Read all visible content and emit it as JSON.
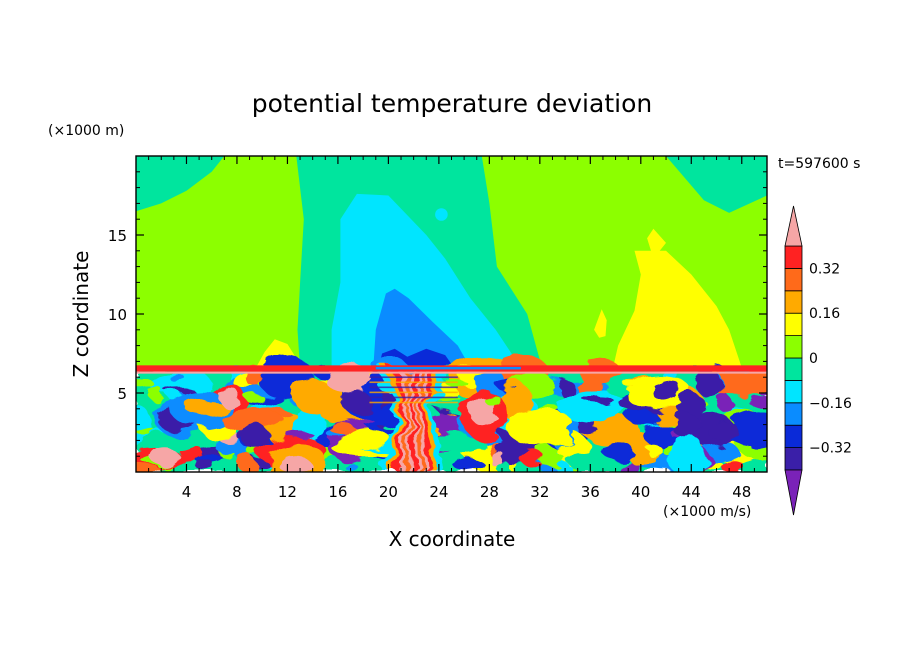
{
  "chart_data": {
    "type": "heatmap",
    "title": "potential temperature deviation",
    "time_label": "t=597600 s",
    "xlabel": "X coordinate",
    "ylabel": "Z coordinate",
    "x_unit": "(×1000 m/s)",
    "y_unit": "(×1000 m)",
    "xlim": [
      0,
      50
    ],
    "ylim": [
      0,
      20
    ],
    "x_ticks": [
      4,
      8,
      12,
      16,
      20,
      24,
      28,
      32,
      36,
      40,
      44,
      48
    ],
    "y_ticks": [
      5,
      10,
      15
    ],
    "colorbar": {
      "levels": [
        -0.4,
        -0.32,
        -0.24,
        -0.16,
        -0.08,
        0,
        0.08,
        0.16,
        0.24,
        0.32,
        0.4
      ],
      "labels": [
        "0.32",
        "0.16",
        "0",
        "−0.16",
        "−0.32"
      ],
      "label_values": [
        0.32,
        0.16,
        0,
        -0.16,
        -0.32
      ],
      "colors": [
        "#7a22b8",
        "#3a1fa8",
        "#0a2ad8",
        "#0a8cff",
        "#00e5ff",
        "#00e59e",
        "#8cff00",
        "#ffff00",
        "#ffaa00",
        "#ff6a1a",
        "#ff2222",
        "#f6a6a6"
      ]
    },
    "features": {
      "upper_layer": [
        {
          "kind": "negative",
          "level": -0.24,
          "x": [
            17.5,
            26.5
          ],
          "z": [
            6.6,
            11.5
          ]
        },
        {
          "kind": "negative",
          "level": -0.08,
          "x": [
            15.5,
            30.5
          ],
          "z": [
            6.6,
            17.5
          ]
        },
        {
          "kind": "positive",
          "level": 0.08,
          "x": [
            38,
            48
          ],
          "z": [
            6.6,
            15
          ]
        }
      ],
      "interface_z": 6.6,
      "lower_layer_plume_x": 22
    }
  }
}
